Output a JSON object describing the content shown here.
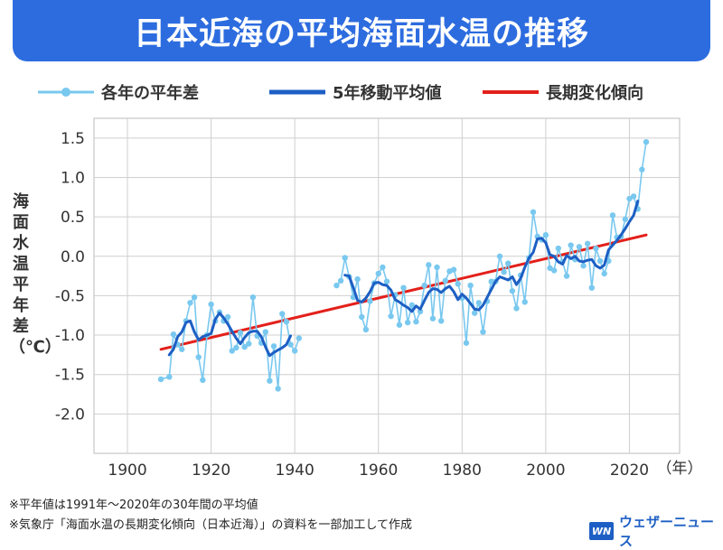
{
  "title": "日本近海の平均海面水温の推移",
  "legend": {
    "annual": "各年の平年差",
    "moving": "5年移動平均値",
    "trend": "長期変化傾向"
  },
  "ylabel": "海面水温平年差（℃）",
  "xunit": "（年）",
  "notes": {
    "line1": "※平年値は1991年～2020年の30年間の平均値",
    "line2": "※気象庁「海面水温の長期変化傾向（日本近海）」の資料を一部加工して作成"
  },
  "logo": {
    "mark": "WN",
    "text": "ウェザーニュース"
  },
  "colors": {
    "title_bg": "#2d6cdf",
    "annual": "#79c8ef",
    "moving": "#1d5fc4",
    "trend": "#e3201b",
    "grid": "#cfcfcf"
  },
  "chart_data": {
    "type": "line",
    "xlim": [
      1892,
      2032
    ],
    "ylim": [
      -2.5,
      1.75
    ],
    "xticks": [
      1900,
      1920,
      1940,
      1960,
      1980,
      2000,
      2020
    ],
    "yticks": [
      1.5,
      1.0,
      0.5,
      0.0,
      -0.5,
      -1.0,
      -1.5,
      -2.0
    ],
    "ytick_labels": [
      "1.5",
      "1.0",
      "0.5",
      "0.0",
      "-0.5",
      "-1.0",
      "-1.5",
      "-2.0"
    ],
    "series": [
      {
        "name": "各年の平年差",
        "segments": [
          {
            "x": [
              1908,
              1910,
              1911,
              1912,
              1913,
              1914,
              1915,
              1916,
              1917,
              1918,
              1919,
              1920,
              1921,
              1922,
              1923,
              1924,
              1925,
              1926,
              1927,
              1928,
              1929,
              1930,
              1931,
              1932,
              1933,
              1934,
              1935,
              1936,
              1937,
              1938,
              1939,
              1940,
              1941
            ],
            "y": [
              -1.56,
              -1.53,
              -0.99,
              -1.12,
              -1.18,
              -0.82,
              -0.59,
              -0.52,
              -1.28,
              -1.57,
              -1.0,
              -0.61,
              -0.82,
              -0.71,
              -0.82,
              -0.77,
              -1.2,
              -1.16,
              -0.97,
              -1.15,
              -1.11,
              -0.52,
              -1.01,
              -1.1,
              -0.96,
              -1.58,
              -1.14,
              -1.68,
              -0.73,
              -0.83,
              -1.12,
              -1.2,
              -1.04
            ]
          },
          {
            "x": [
              1950,
              1951,
              1952,
              1953,
              1954,
              1955,
              1956,
              1957,
              1958,
              1959,
              1960,
              1961,
              1962,
              1963,
              1964,
              1965,
              1966,
              1967,
              1968,
              1969,
              1970,
              1971,
              1972,
              1973,
              1974,
              1975,
              1976,
              1977,
              1978,
              1979,
              1980,
              1981,
              1982,
              1983,
              1984,
              1985,
              1986,
              1987,
              1988,
              1989,
              1990,
              1991,
              1992,
              1993,
              1994,
              1995,
              1996,
              1997,
              1998,
              1999,
              2000,
              2001,
              2002,
              2003,
              2004,
              2005,
              2006,
              2007,
              2008,
              2009,
              2010,
              2011,
              2012,
              2013,
              2014,
              2015,
              2016,
              2017,
              2018,
              2019,
              2020,
              2021,
              2022,
              2023,
              2024
            ],
            "y": [
              -0.37,
              -0.31,
              -0.02,
              -0.26,
              -0.52,
              -0.29,
              -0.77,
              -0.93,
              -0.57,
              -0.34,
              -0.22,
              -0.14,
              -0.32,
              -0.76,
              -0.49,
              -0.87,
              -0.4,
              -0.84,
              -0.62,
              -0.83,
              -0.7,
              -0.37,
              -0.11,
              -0.79,
              -0.14,
              -0.82,
              -0.31,
              -0.19,
              -0.17,
              -0.35,
              -0.53,
              -1.1,
              -0.37,
              -0.72,
              -0.59,
              -0.96,
              -0.57,
              -0.32,
              -0.32,
              0.0,
              -0.2,
              -0.09,
              -0.44,
              -0.66,
              -0.24,
              -0.58,
              -0.02,
              0.56,
              0.25,
              0.21,
              0.27,
              -0.15,
              -0.18,
              0.1,
              -0.07,
              -0.25,
              0.14,
              -0.04,
              0.12,
              -0.12,
              0.16,
              -0.4,
              0.1,
              -0.06,
              -0.22,
              -0.06,
              0.52,
              0.24,
              0.25,
              0.47,
              0.73,
              0.76,
              0.6,
              1.1,
              1.45
            ]
          }
        ]
      },
      {
        "name": "5年移動平均値",
        "segments": [
          {
            "x": [
              1910,
              1911,
              1912,
              1913,
              1914,
              1915,
              1916,
              1917,
              1918,
              1919,
              1920,
              1921,
              1922,
              1923,
              1924,
              1925,
              1926,
              1927,
              1928,
              1929,
              1930,
              1931,
              1932,
              1933,
              1934,
              1935,
              1936,
              1937,
              1938,
              1939
            ],
            "y": [
              -1.25,
              -1.18,
              -1.02,
              -0.96,
              -0.84,
              -0.82,
              -0.96,
              -1.06,
              -1.02,
              -1.0,
              -0.98,
              -0.8,
              -0.72,
              -0.78,
              -0.86,
              -0.95,
              -1.04,
              -1.11,
              -1.03,
              -0.97,
              -0.95,
              -0.95,
              -1.02,
              -1.15,
              -1.26,
              -1.22,
              -1.19,
              -1.16,
              -1.12,
              -1.01
            ]
          },
          {
            "x": [
              1952,
              1953,
              1954,
              1955,
              1956,
              1957,
              1958,
              1959,
              1960,
              1961,
              1962,
              1963,
              1964,
              1965,
              1966,
              1967,
              1968,
              1969,
              1970,
              1971,
              1972,
              1973,
              1974,
              1975,
              1976,
              1977,
              1978,
              1979,
              1980,
              1981,
              1982,
              1983,
              1984,
              1985,
              1986,
              1987,
              1988,
              1989,
              1990,
              1991,
              1992,
              1993,
              1994,
              1995,
              1996,
              1997,
              1998,
              1999,
              2000,
              2001,
              2002,
              2003,
              2004,
              2005,
              2006,
              2007,
              2008,
              2009,
              2010,
              2011,
              2012,
              2013,
              2014,
              2015,
              2016,
              2017,
              2018,
              2019,
              2020,
              2021,
              2022
            ],
            "y": [
              -0.24,
              -0.25,
              -0.4,
              -0.56,
              -0.58,
              -0.53,
              -0.45,
              -0.34,
              -0.33,
              -0.36,
              -0.37,
              -0.43,
              -0.55,
              -0.58,
              -0.62,
              -0.65,
              -0.7,
              -0.63,
              -0.67,
              -0.56,
              -0.46,
              -0.41,
              -0.42,
              -0.46,
              -0.41,
              -0.38,
              -0.45,
              -0.55,
              -0.48,
              -0.53,
              -0.6,
              -0.67,
              -0.68,
              -0.62,
              -0.52,
              -0.42,
              -0.32,
              -0.26,
              -0.28,
              -0.3,
              -0.26,
              -0.36,
              -0.28,
              -0.14,
              -0.02,
              0.05,
              0.22,
              0.23,
              0.17,
              0.02,
              0.0,
              -0.07,
              -0.1,
              0.01,
              -0.03,
              0.0,
              -0.06,
              -0.07,
              -0.05,
              -0.04,
              -0.12,
              -0.15,
              -0.11,
              0.08,
              0.14,
              0.2,
              0.27,
              0.35,
              0.44,
              0.52,
              0.7
            ]
          }
        ]
      },
      {
        "name": "長期変化傾向",
        "segments": [
          {
            "x": [
              1908,
              2024
            ],
            "y": [
              -1.18,
              0.27
            ]
          }
        ]
      }
    ]
  }
}
